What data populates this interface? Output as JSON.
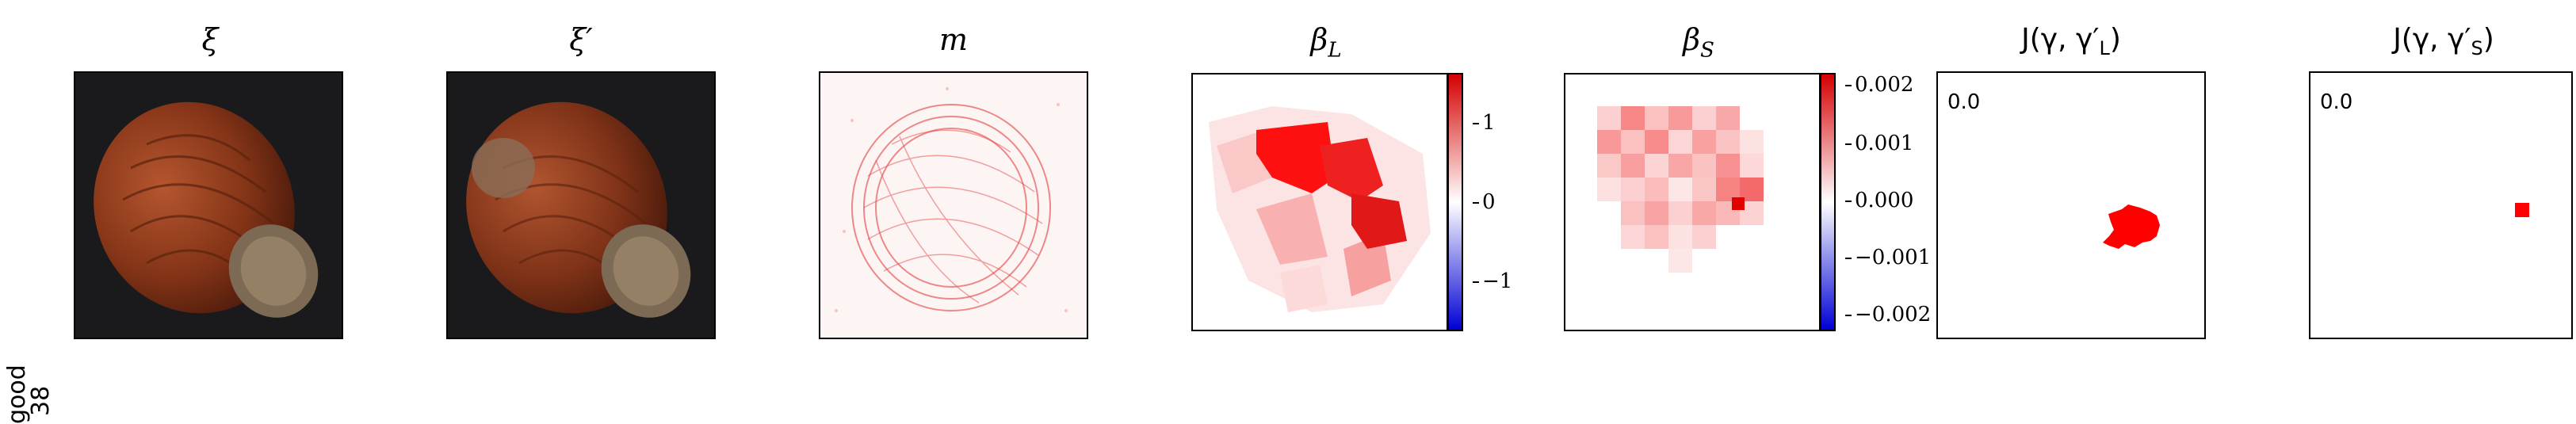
{
  "row": {
    "label_line1": "good",
    "label_line2": "38"
  },
  "panels": {
    "xi": {
      "title": "ξ"
    },
    "xi_prime": {
      "title": "ξ′"
    },
    "m": {
      "title": "m"
    },
    "beta_L": {
      "title": "βL",
      "colorbar_ticks": [
        "1",
        "0",
        "−1"
      ]
    },
    "beta_S": {
      "title": "βS",
      "colorbar_ticks": [
        "0.002",
        "0.001",
        "0.000",
        "−0.001",
        "−0.002"
      ]
    },
    "J_L": {
      "title": "J(γ, γ′L)",
      "value": "0.0"
    },
    "J_S": {
      "title": "J(γ, γ′S)",
      "value": "0.0"
    }
  },
  "colors": {
    "positive": "#ff0000",
    "negative": "#0000ff",
    "neutral": "#ffffff",
    "image_bg": "#1a1a1c",
    "nut": "#8b3a1e"
  }
}
